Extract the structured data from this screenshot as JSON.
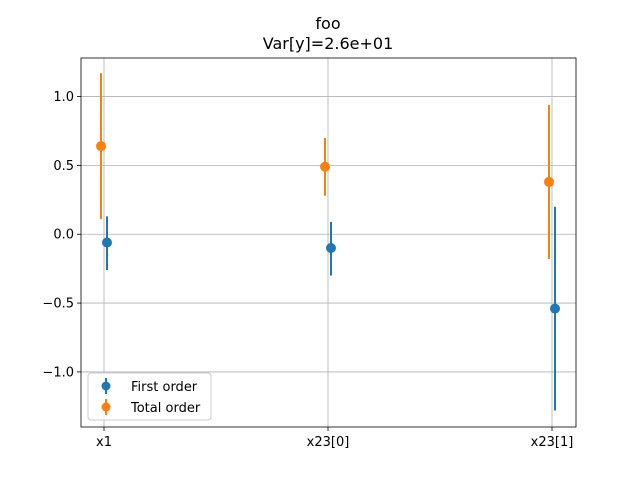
{
  "chart_data": {
    "type": "scatter",
    "title": "foo",
    "subtitle": "Var[y]=2.6e+01",
    "xlabel": "",
    "ylabel": "",
    "categories": [
      "x1",
      "x23[0]",
      "x23[1]"
    ],
    "ylim": [
      -1.4,
      1.28
    ],
    "yticks": [
      1.0,
      0.5,
      0.0,
      -0.5,
      -1.0
    ],
    "ytick_labels": [
      "1.0",
      "0.5",
      "0.0",
      "−0.5",
      "−1.0"
    ],
    "grid": true,
    "legend_position": "lower-left",
    "series": [
      {
        "name": "First order",
        "color": "#1f77b4",
        "values": [
          -0.06,
          -0.1,
          -0.54
        ],
        "lower": [
          -0.26,
          -0.3,
          -1.28
        ],
        "upper": [
          0.13,
          0.09,
          0.2
        ]
      },
      {
        "name": "Total order",
        "color": "#ff7f0e",
        "values": [
          0.64,
          0.49,
          0.38
        ],
        "lower": [
          0.11,
          0.28,
          -0.18
        ],
        "upper": [
          1.17,
          0.7,
          0.94
        ]
      }
    ]
  }
}
